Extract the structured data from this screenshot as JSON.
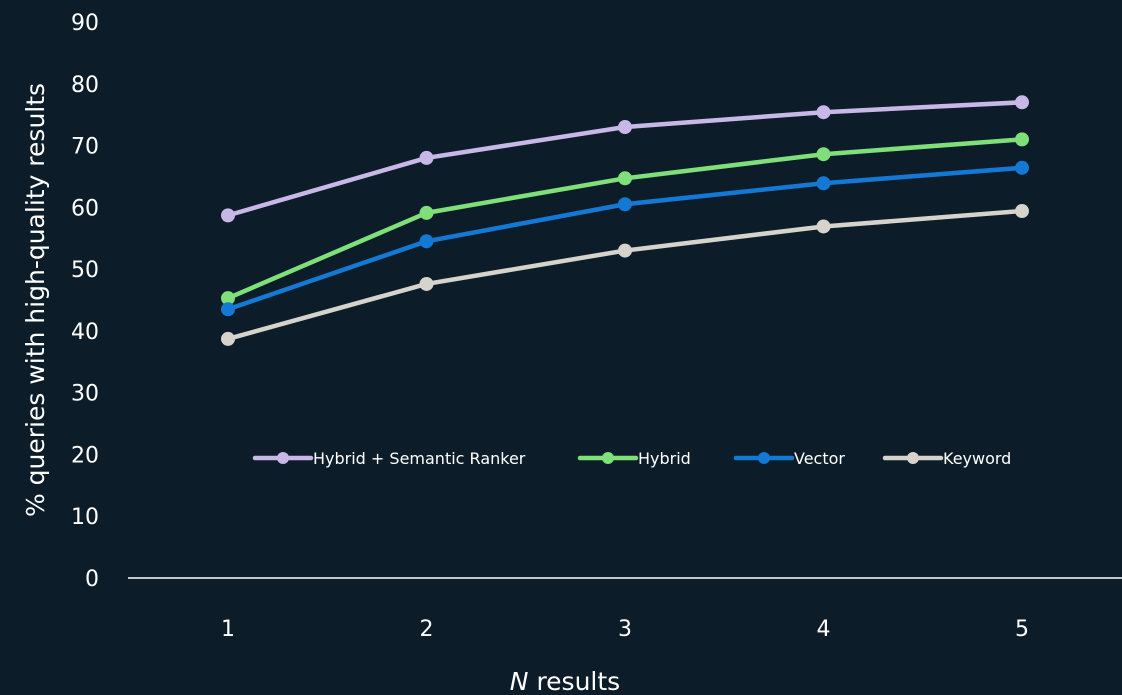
{
  "chart_data": {
    "type": "line",
    "xlabel_italic": "N",
    "xlabel_rest": " results",
    "ylabel": "% queries with high-quality results",
    "categories": [
      "1",
      "2",
      "3",
      "4",
      "5"
    ],
    "y_ticks": [
      "0",
      "10",
      "20",
      "30",
      "40",
      "50",
      "60",
      "70",
      "80",
      "90"
    ],
    "ylim": [
      0,
      90
    ],
    "grid": false,
    "legend_position": "inside-bottom",
    "series": [
      {
        "name": "Hybrid + Semantic Ranker",
        "color": "#c8b8e8",
        "values": [
          58.7,
          68.0,
          73.0,
          75.4,
          77.0
        ]
      },
      {
        "name": "Hybrid",
        "color": "#7fe07a",
        "values": [
          45.3,
          59.1,
          64.7,
          68.6,
          71.0
        ]
      },
      {
        "name": "Vector",
        "color": "#1479d4",
        "values": [
          43.5,
          54.5,
          60.5,
          63.9,
          66.4
        ]
      },
      {
        "name": "Keyword",
        "color": "#d6d3cd",
        "values": [
          38.7,
          47.6,
          53.0,
          56.9,
          59.4
        ]
      }
    ]
  }
}
